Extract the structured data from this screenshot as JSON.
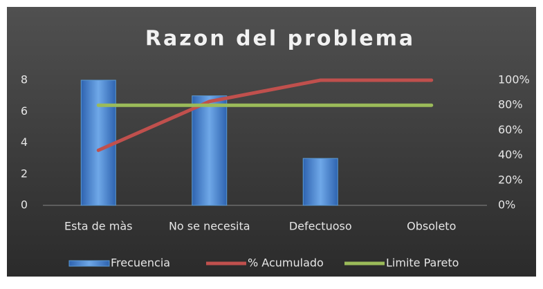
{
  "chart_data": {
    "type": "bar",
    "title": "Razon del problema",
    "categories": [
      "Esta de màs",
      "No se necesita",
      "Defectuoso",
      "Obsoleto"
    ],
    "series": [
      {
        "name": "Frecuencia",
        "type": "bar",
        "color": "#5b9bd5",
        "values": [
          8,
          7,
          3,
          0
        ]
      },
      {
        "name": "% Acumulado",
        "type": "line",
        "axis": "y2",
        "color": "#c0504d",
        "values": [
          44,
          83,
          100,
          100
        ]
      },
      {
        "name": "Limite Pareto",
        "type": "line",
        "axis": "y2",
        "color": "#9bbb59",
        "values": [
          80,
          80,
          80,
          80
        ]
      }
    ],
    "ylim": [
      0,
      8
    ],
    "yticks": [
      0,
      2,
      4,
      6,
      8
    ],
    "y2lim": [
      0,
      100
    ],
    "y2ticks": [
      {
        "value": 0,
        "label": "0%"
      },
      {
        "value": 20,
        "label": "20%"
      },
      {
        "value": 40,
        "label": "40%"
      },
      {
        "value": 60,
        "label": "60%"
      },
      {
        "value": 80,
        "label": "80%"
      },
      {
        "value": 100,
        "label": "100%"
      }
    ],
    "legend": "bottom"
  }
}
